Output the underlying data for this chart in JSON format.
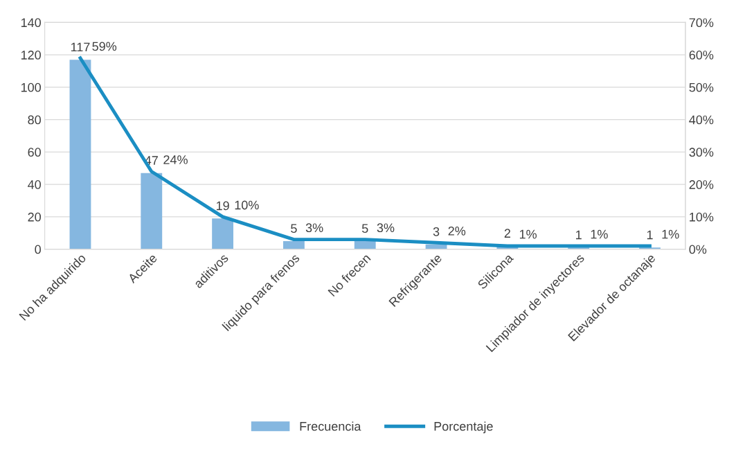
{
  "chart_data": {
    "type": "bar",
    "categories": [
      "No ha adquirido",
      "Aceite",
      "aditivos",
      "liquido para frenos",
      "No frecen",
      "Refrigerante",
      "Silicona",
      "Limpiador de inyectores",
      "Elevador de octanaje"
    ],
    "series": [
      {
        "name": "Frecuencia",
        "color": "#85b7e0",
        "values": [
          117,
          47,
          19,
          5,
          5,
          3,
          2,
          1,
          1
        ],
        "data_labels": true
      },
      {
        "name": "Porcentaje",
        "type": "line",
        "axis": "y2",
        "color": "#1b8ec3",
        "values": [
          59,
          24,
          10,
          3,
          3,
          2,
          1,
          1,
          1
        ],
        "value_labels": [
          "59%",
          "24%",
          "10%",
          "3%",
          "3%",
          "2%",
          "1%",
          "1%",
          "1%"
        ]
      }
    ],
    "ylim": [
      0,
      140
    ],
    "yticks": [
      0,
      20,
      40,
      60,
      80,
      100,
      120,
      140
    ],
    "y2lim": [
      0,
      70
    ],
    "y2ticks": [
      {
        "value": 0,
        "label": "0%"
      },
      {
        "value": 10,
        "label": "10%"
      },
      {
        "value": 20,
        "label": "20%"
      },
      {
        "value": 30,
        "label": "30%"
      },
      {
        "value": 40,
        "label": "40%"
      },
      {
        "value": 50,
        "label": "50%"
      },
      {
        "value": 60,
        "label": "60%"
      },
      {
        "value": 70,
        "label": "70%"
      }
    ],
    "grid": "y",
    "legend": "bottom",
    "marker": "none",
    "line_style": "solid"
  }
}
